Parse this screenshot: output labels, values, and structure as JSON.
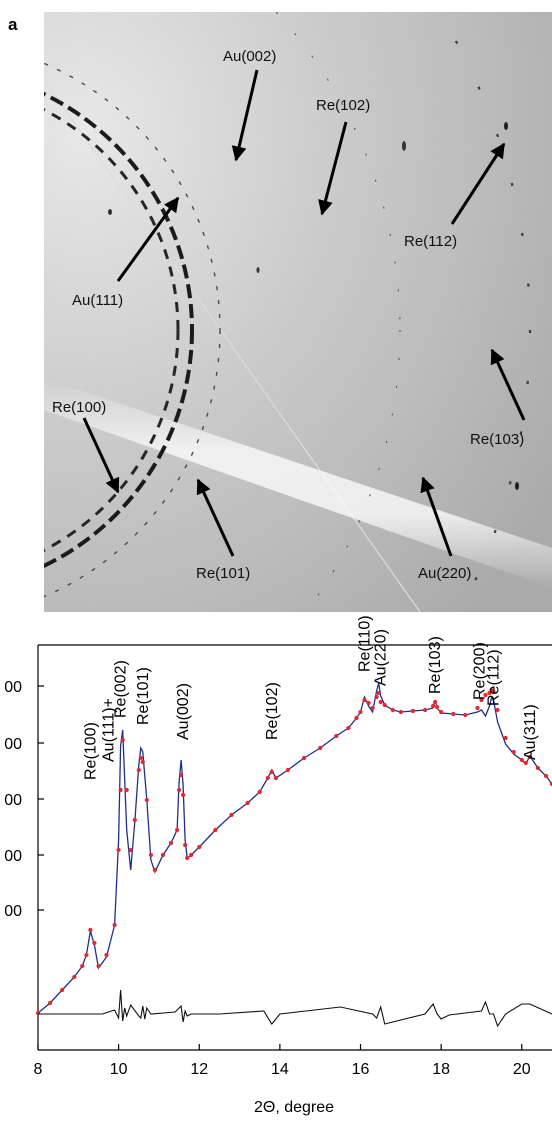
{
  "panel_label": "a",
  "diffraction_labels": [
    {
      "text": "Au(002)"
    },
    {
      "text": "Re(102)"
    },
    {
      "text": "Re(112)"
    },
    {
      "text": "Au(111)"
    },
    {
      "text": "Re(100)"
    },
    {
      "text": "Re(103)"
    },
    {
      "text": "Re(101)"
    },
    {
      "text": "Au(220)"
    }
  ],
  "chart_data": {
    "type": "line",
    "xlabel": "2Θ, degree",
    "xlim": [
      8,
      20.75
    ],
    "x_ticks": [
      8,
      10,
      12,
      14,
      16,
      18,
      20
    ],
    "y_tick_labels": [
      "00",
      "00",
      "00",
      "00",
      "00"
    ],
    "grid": false,
    "colors": {
      "observed": "#e8262b",
      "calculated": "#1d2f8f",
      "difference": "#111111"
    },
    "series": [
      {
        "x": [
          8.0,
          8.3,
          8.6,
          8.9,
          9.1,
          9.2,
          9.3,
          9.4,
          9.5,
          9.7,
          9.9,
          10.0,
          10.05,
          10.1,
          10.2,
          10.3,
          10.4,
          10.5,
          10.55,
          10.6,
          10.7,
          10.8,
          10.9,
          11.1,
          11.3,
          11.45,
          11.5,
          11.55,
          11.6,
          11.65,
          11.7,
          11.8,
          12.0,
          12.4,
          12.8,
          13.2,
          13.5,
          13.7,
          13.8,
          13.9,
          14.2,
          14.6,
          15.0,
          15.4,
          15.7,
          15.9,
          16.0,
          16.1,
          16.2,
          16.3,
          16.4,
          16.45,
          16.5,
          16.6,
          16.8,
          17.0,
          17.3,
          17.6,
          17.8,
          17.85,
          17.9,
          18.0,
          18.3,
          18.6,
          18.9,
          19.0,
          19.1,
          19.2,
          19.25,
          19.3,
          19.4,
          19.6,
          19.8,
          20.0,
          20.1,
          20.2,
          20.4,
          20.6,
          20.75
        ]
      },
      {
        "x": [
          8.0,
          8.3,
          8.6,
          8.9,
          9.1,
          9.2,
          9.3,
          9.4,
          9.5,
          9.7,
          9.9,
          10.0,
          10.05,
          10.1,
          10.2,
          10.3,
          10.4,
          10.5,
          10.55,
          10.6,
          10.7,
          10.8,
          10.9,
          11.1,
          11.3,
          11.45,
          11.5,
          11.55,
          11.6,
          11.65,
          11.7,
          11.8,
          12.0,
          12.4,
          12.8,
          13.2,
          13.5,
          13.7,
          13.8,
          13.9,
          14.2,
          14.6,
          15.0,
          15.4,
          15.7,
          15.9,
          16.0,
          16.1,
          16.2,
          16.3,
          16.4,
          16.45,
          16.5,
          16.6,
          16.8,
          17.0,
          17.3,
          17.6,
          17.8,
          17.85,
          17.9,
          18.0,
          18.3,
          18.6,
          18.9,
          19.0,
          19.1,
          19.2,
          19.25,
          19.3,
          19.4,
          19.6,
          19.8,
          20.0,
          20.1,
          20.2,
          20.4,
          20.6,
          20.75
        ]
      },
      {
        "x": [
          8.0,
          9.0,
          9.6,
          9.9,
          10.0,
          10.05,
          10.1,
          10.15,
          10.2,
          10.3,
          10.5,
          10.55,
          10.6,
          10.65,
          10.7,
          10.8,
          11.4,
          11.55,
          11.6,
          11.65,
          11.7,
          11.8,
          12.5,
          13.6,
          13.8,
          14.0,
          15.5,
          16.3,
          16.4,
          16.5,
          16.6,
          17.6,
          17.8,
          17.9,
          18.0,
          18.2,
          19.0,
          19.1,
          19.2,
          19.3,
          19.4,
          19.6,
          20.0,
          20.2,
          20.75
        ]
      }
    ],
    "peaks": [
      {
        "label": "Re(100)",
        "x": 9.3
      },
      {
        "label": "Au(111)+",
        "x": 9.75
      },
      {
        "label": "Re(002)",
        "x": 10.05
      },
      {
        "label": "Re(101)",
        "x": 10.6
      },
      {
        "label": "Au(002)",
        "x": 11.6
      },
      {
        "label": "Re(102)",
        "x": 13.8
      },
      {
        "label": "Re(110)",
        "x": 16.1
      },
      {
        "label": "Au(220)",
        "x": 16.5
      },
      {
        "label": "Re(103)",
        "x": 17.85
      },
      {
        "label": "Re(200)",
        "x": 18.95
      },
      {
        "label": "Re(112)",
        "x": 19.3
      },
      {
        "label": "Au(311)",
        "x": 20.2
      }
    ]
  }
}
